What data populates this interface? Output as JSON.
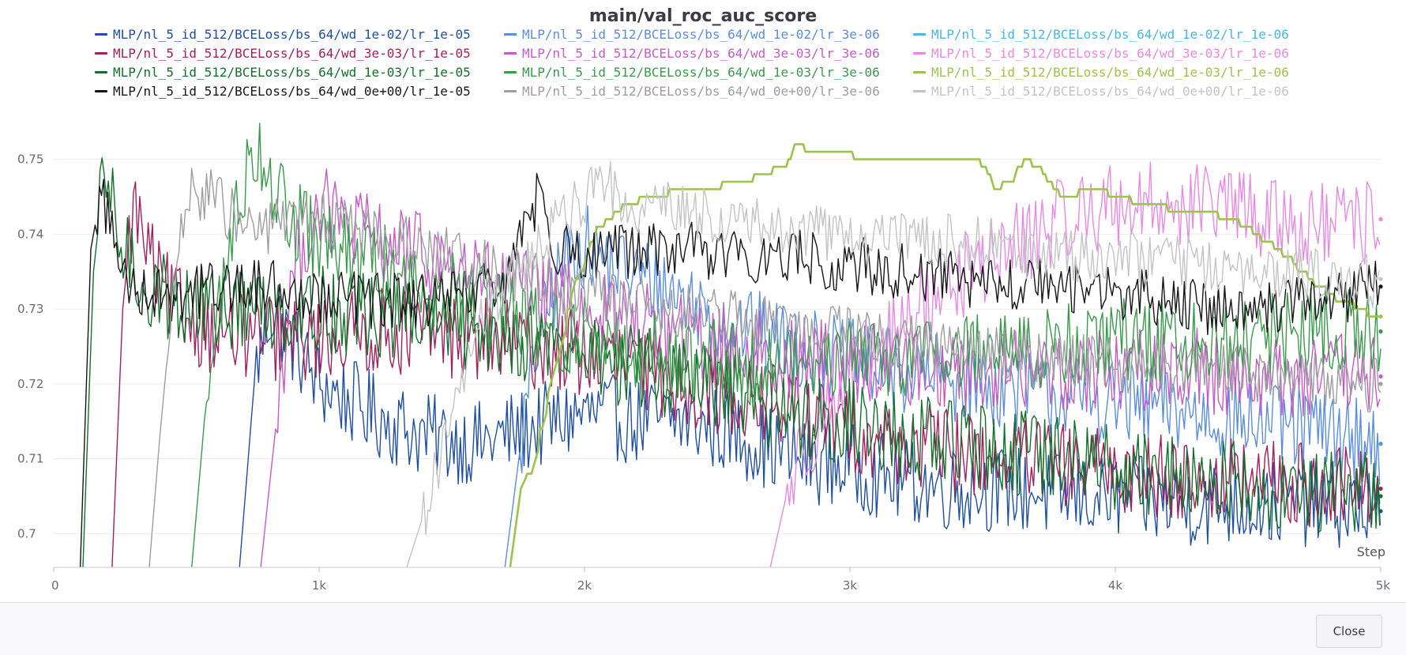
{
  "chart_data": {
    "type": "line",
    "title": "main/val_roc_auc_score",
    "xlabel": "Step",
    "ylabel": "",
    "xlim": [
      0,
      5000
    ],
    "ylim": [
      0.6955,
      0.7565
    ],
    "x_ticks": [
      {
        "value": 0,
        "label": "0"
      },
      {
        "value": 1000,
        "label": "1k"
      },
      {
        "value": 2000,
        "label": "2k"
      },
      {
        "value": 3000,
        "label": "3k"
      },
      {
        "value": 4000,
        "label": "4k"
      },
      {
        "value": 5000,
        "label": "5k"
      }
    ],
    "y_ticks": [
      {
        "value": 0.7,
        "label": "0.7"
      },
      {
        "value": 0.71,
        "label": "0.71"
      },
      {
        "value": 0.72,
        "label": "0.72"
      },
      {
        "value": 0.73,
        "label": "0.73"
      },
      {
        "value": 0.74,
        "label": "0.74"
      },
      {
        "value": 0.75,
        "label": "0.75"
      }
    ],
    "grid": true,
    "legend_position": "top",
    "series": [
      {
        "name": "MLP/nl_5_id_512/BCELoss/bs_64/wd_1e-02/lr_1e-05",
        "color": "#1f4fa0",
        "x": [
          700,
          760,
          820,
          1000,
          1200,
          1400,
          1600,
          1800,
          2000,
          2200,
          2400,
          2600,
          2800,
          3000,
          3200,
          3400,
          3600,
          3800,
          4000,
          4200,
          4400,
          4600,
          4800,
          5000
        ],
        "y": [
          0.6955,
          0.722,
          0.73,
          0.72,
          0.716,
          0.713,
          0.712,
          0.714,
          0.716,
          0.715,
          0.715,
          0.713,
          0.71,
          0.709,
          0.707,
          0.706,
          0.706,
          0.705,
          0.705,
          0.704,
          0.704,
          0.704,
          0.704,
          0.703
        ]
      },
      {
        "name": "MLP/nl_5_id_512/BCELoss/bs_64/wd_1e-02/lr_3e-06",
        "color": "#5b8ede",
        "x": [
          1700,
          1760,
          1830,
          1900,
          1970,
          2100,
          2300,
          2500,
          2700,
          2900,
          3100,
          3300,
          3500,
          3700,
          3900,
          4100,
          4300,
          4500,
          4700,
          4900,
          5000
        ],
        "y": [
          0.6955,
          0.712,
          0.727,
          0.734,
          0.739,
          0.736,
          0.733,
          0.729,
          0.726,
          0.724,
          0.722,
          0.721,
          0.72,
          0.719,
          0.718,
          0.717,
          0.716,
          0.715,
          0.714,
          0.713,
          0.712
        ]
      },
      {
        "name": "MLP/nl_5_id_512/BCELoss/bs_64/wd_1e-02/lr_1e-06",
        "color": "#49b7e0",
        "x": [],
        "y": []
      },
      {
        "name": "MLP/nl_5_id_512/BCELoss/bs_64/wd_3e-03/lr_1e-05",
        "color": "#a31f5e",
        "x": [
          220,
          260,
          300,
          350,
          400,
          500,
          600,
          800,
          1000,
          1200,
          1400,
          1600,
          1800,
          2000,
          2200,
          2400,
          2600,
          2800,
          3000,
          3200,
          3400,
          3600,
          3800,
          4000,
          4200,
          4400,
          4600,
          4800,
          5000
        ],
        "y": [
          0.6955,
          0.73,
          0.744,
          0.738,
          0.733,
          0.729,
          0.727,
          0.726,
          0.726,
          0.727,
          0.727,
          0.726,
          0.725,
          0.724,
          0.722,
          0.72,
          0.718,
          0.716,
          0.714,
          0.712,
          0.711,
          0.71,
          0.709,
          0.708,
          0.708,
          0.707,
          0.707,
          0.706,
          0.706
        ]
      },
      {
        "name": "MLP/nl_5_id_512/BCELoss/bs_64/wd_3e-03/lr_3e-06",
        "color": "#c45cc4",
        "x": [
          780,
          830,
          900,
          1000,
          1100,
          1300,
          1500,
          1700,
          1900,
          2100,
          2300,
          2500,
          2700,
          2900,
          3100,
          3300,
          3500,
          3700,
          3900,
          4100,
          4300,
          4500,
          4700,
          4900,
          5000
        ],
        "y": [
          0.6955,
          0.712,
          0.735,
          0.744,
          0.741,
          0.738,
          0.736,
          0.733,
          0.731,
          0.729,
          0.727,
          0.725,
          0.724,
          0.723,
          0.723,
          0.722,
          0.722,
          0.722,
          0.722,
          0.722,
          0.722,
          0.721,
          0.721,
          0.721,
          0.721
        ]
      },
      {
        "name": "MLP/nl_5_id_512/BCELoss/bs_64/wd_3e-03/lr_1e-06",
        "color": "#e889e3",
        "x": [
          2700,
          2760,
          2830,
          2900,
          3000,
          3100,
          3200,
          3300,
          3400,
          3500,
          3600,
          3700,
          3800,
          3900,
          4000,
          4100,
          4200,
          4300,
          4400,
          4500,
          4600,
          4700,
          4800,
          4900,
          5000
        ],
        "y": [
          0.6955,
          0.705,
          0.712,
          0.716,
          0.721,
          0.724,
          0.728,
          0.731,
          0.734,
          0.736,
          0.738,
          0.74,
          0.742,
          0.743,
          0.744,
          0.744,
          0.744,
          0.744,
          0.744,
          0.743,
          0.742,
          0.741,
          0.741,
          0.741,
          0.742
        ]
      },
      {
        "name": "MLP/nl_5_id_512/BCELoss/bs_64/wd_1e-03/lr_1e-05",
        "color": "#12702a",
        "x": [
          110,
          150,
          190,
          230,
          270,
          350,
          450,
          600,
          800,
          1000,
          1200,
          1400,
          1600,
          1800,
          2000,
          2200,
          2400,
          2600,
          2800,
          3000,
          3200,
          3400,
          3600,
          3800,
          4000,
          4200,
          4400,
          4600,
          4800,
          5000
        ],
        "y": [
          0.6955,
          0.735,
          0.748,
          0.742,
          0.737,
          0.733,
          0.731,
          0.73,
          0.73,
          0.73,
          0.729,
          0.728,
          0.727,
          0.726,
          0.724,
          0.722,
          0.72,
          0.718,
          0.716,
          0.715,
          0.713,
          0.712,
          0.711,
          0.71,
          0.709,
          0.708,
          0.707,
          0.706,
          0.706,
          0.705
        ]
      },
      {
        "name": "MLP/nl_5_id_512/BCELoss/bs_64/wd_1e-03/lr_3e-06",
        "color": "#3a9a4c",
        "x": [
          520,
          570,
          640,
          720,
          780,
          850,
          950,
          1100,
          1300,
          1500,
          1700,
          1900,
          2100,
          2300,
          2500,
          2700,
          2900,
          3100,
          3300,
          3500,
          3700,
          3900,
          4100,
          4300,
          4500,
          4700,
          4900,
          5000
        ],
        "y": [
          0.6955,
          0.716,
          0.734,
          0.748,
          0.752,
          0.744,
          0.74,
          0.737,
          0.735,
          0.732,
          0.729,
          0.727,
          0.725,
          0.724,
          0.723,
          0.723,
          0.723,
          0.724,
          0.724,
          0.725,
          0.725,
          0.725,
          0.726,
          0.726,
          0.726,
          0.727,
          0.727,
          0.727
        ]
      },
      {
        "name": "MLP/nl_5_id_512/BCELoss/bs_64/wd_1e-03/lr_1e-06",
        "color": "#9cc34c",
        "x": [
          1720,
          1760,
          1800,
          1860,
          1920,
          1970,
          2050,
          2150,
          2250,
          2350,
          2450,
          2550,
          2650,
          2750,
          2800,
          2850,
          2950,
          3050,
          3150,
          3250,
          3350,
          3450,
          3500,
          3550,
          3600,
          3650,
          3700,
          3800,
          3900,
          4000,
          4100,
          4200,
          4300,
          4400,
          4500,
          4600,
          4700,
          4800,
          4900,
          5000
        ],
        "y": [
          0.6955,
          0.706,
          0.709,
          0.718,
          0.728,
          0.734,
          0.741,
          0.744,
          0.745,
          0.746,
          0.746,
          0.747,
          0.748,
          0.749,
          0.752,
          0.751,
          0.751,
          0.75,
          0.75,
          0.75,
          0.75,
          0.75,
          0.749,
          0.746,
          0.747,
          0.75,
          0.749,
          0.745,
          0.746,
          0.745,
          0.744,
          0.743,
          0.743,
          0.742,
          0.741,
          0.738,
          0.735,
          0.732,
          0.73,
          0.729
        ]
      },
      {
        "name": "MLP/nl_5_id_512/BCELoss/bs_64/wd_0e+00/lr_1e-05",
        "color": "#161616",
        "x": [
          100,
          140,
          180,
          220,
          260,
          320,
          400,
          500,
          600,
          800,
          1000,
          1200,
          1400,
          1600,
          1700,
          1800,
          1830,
          1900,
          2000,
          2200,
          2400,
          2600,
          2800,
          3000,
          3200,
          3400,
          3600,
          3800,
          4000,
          4200,
          4400,
          4600,
          4800,
          5000
        ],
        "y": [
          0.6955,
          0.738,
          0.746,
          0.74,
          0.735,
          0.733,
          0.732,
          0.732,
          0.733,
          0.733,
          0.732,
          0.731,
          0.731,
          0.732,
          0.734,
          0.742,
          0.746,
          0.738,
          0.737,
          0.738,
          0.738,
          0.737,
          0.737,
          0.736,
          0.735,
          0.734,
          0.733,
          0.733,
          0.732,
          0.731,
          0.73,
          0.73,
          0.731,
          0.733
        ]
      },
      {
        "name": "MLP/nl_5_id_512/BCELoss/bs_64/wd_0e+00/lr_3e-06",
        "color": "#9c9ea2",
        "x": [
          360,
          400,
          460,
          520,
          580,
          650,
          720,
          800,
          900,
          1000,
          1100,
          1300,
          1500,
          1700,
          1900,
          2100,
          2300,
          2500,
          2700,
          2900,
          3100,
          3300,
          3500,
          3700,
          3900,
          4100,
          4300,
          4500,
          4700,
          4900,
          5000
        ],
        "y": [
          0.6955,
          0.713,
          0.736,
          0.745,
          0.746,
          0.743,
          0.741,
          0.741,
          0.742,
          0.742,
          0.741,
          0.739,
          0.737,
          0.735,
          0.733,
          0.731,
          0.73,
          0.729,
          0.728,
          0.727,
          0.726,
          0.725,
          0.724,
          0.723,
          0.723,
          0.722,
          0.722,
          0.721,
          0.721,
          0.72,
          0.72
        ]
      },
      {
        "name": "MLP/nl_5_id_512/BCELoss/bs_64/wd_0e+00/lr_1e-06",
        "color": "#c2c4c8",
        "x": [
          1330,
          1380,
          1430,
          1490,
          1550,
          1620,
          1700,
          1800,
          1900,
          2000,
          2100,
          2200,
          2300,
          2400,
          2500,
          2600,
          2700,
          2800,
          2900,
          3000,
          3200,
          3400,
          3600,
          3800,
          4000,
          4200,
          4400,
          4600,
          4800,
          5000
        ],
        "y": [
          0.6955,
          0.701,
          0.707,
          0.714,
          0.722,
          0.729,
          0.733,
          0.737,
          0.742,
          0.745,
          0.746,
          0.744,
          0.744,
          0.743,
          0.742,
          0.741,
          0.741,
          0.741,
          0.74,
          0.74,
          0.739,
          0.739,
          0.738,
          0.737,
          0.737,
          0.736,
          0.736,
          0.735,
          0.734,
          0.734
        ]
      }
    ]
  },
  "footer": {
    "close_label": "Close"
  }
}
